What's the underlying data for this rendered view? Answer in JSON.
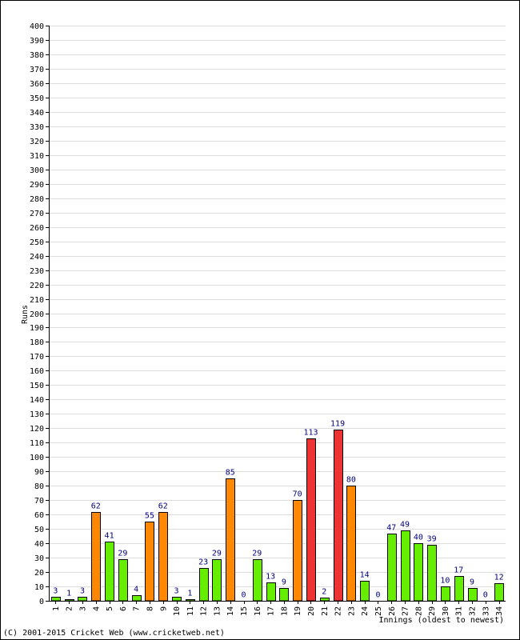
{
  "chart_data": {
    "type": "bar",
    "xlabel": "Innings (oldest to newest)",
    "ylabel": "Runs",
    "ylim": [
      0,
      400
    ],
    "ytick_step": 10,
    "grid": true,
    "categories": [
      "1",
      "2",
      "3",
      "4",
      "5",
      "6",
      "7",
      "8",
      "9",
      "10",
      "11",
      "12",
      "13",
      "14",
      "15",
      "16",
      "17",
      "18",
      "19",
      "20",
      "21",
      "22",
      "23",
      "24",
      "25",
      "26",
      "27",
      "28",
      "29",
      "30",
      "31",
      "32",
      "33",
      "34"
    ],
    "values": [
      3,
      1,
      3,
      62,
      41,
      29,
      4,
      55,
      62,
      3,
      1,
      23,
      29,
      85,
      0,
      29,
      13,
      9,
      70,
      113,
      2,
      119,
      80,
      14,
      0,
      47,
      49,
      40,
      39,
      10,
      17,
      9,
      0,
      12
    ],
    "color_thresholds": {
      "below_50": "#66ee00",
      "from_50": "#ff8800",
      "from_100": "#ee3333"
    },
    "label_color": "#000080"
  },
  "footer": {
    "copyright": "(C) 2001-2015 Cricket Web (www.cricketweb.net)"
  }
}
